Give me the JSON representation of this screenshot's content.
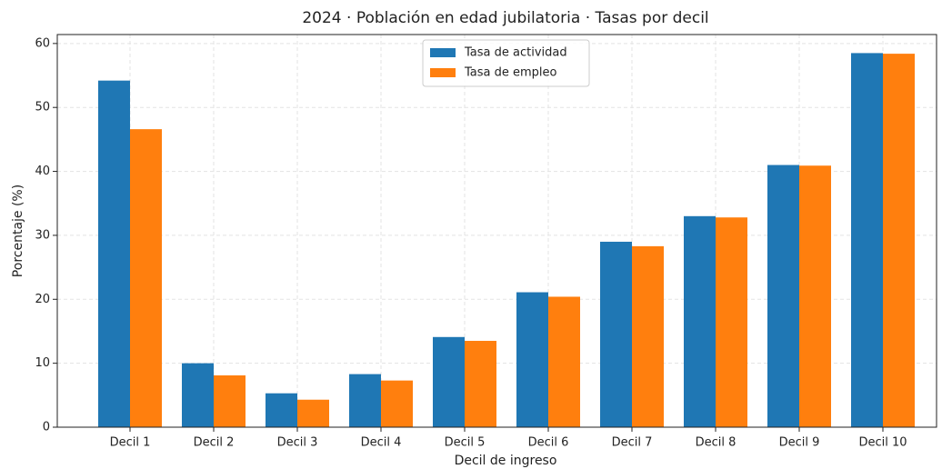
{
  "chart_data": {
    "type": "bar",
    "title": "2024 · Población en edad jubilatoria · Tasas por decil",
    "x_label": "Decil de ingreso",
    "y_label": "Porcentaje (%)",
    "categories": [
      "Decil 1",
      "Decil 2",
      "Decil 3",
      "Decil 4",
      "Decil 5",
      "Decil 6",
      "Decil 7",
      "Decil 8",
      "Decil 9",
      "Decil 10"
    ],
    "series": [
      {
        "name": "Tasa de actividad",
        "color": "#1f77b4",
        "values": [
          54.2,
          10.0,
          5.3,
          8.3,
          14.1,
          21.1,
          29.0,
          33.0,
          41.0,
          58.5
        ]
      },
      {
        "name": "Tasa de empleo",
        "color": "#ff7f0e",
        "values": [
          46.6,
          8.1,
          4.3,
          7.3,
          13.5,
          20.4,
          28.3,
          32.8,
          40.9,
          58.4
        ]
      }
    ],
    "ylim": [
      0,
      61.4
    ],
    "yticks": [
      0,
      10,
      20,
      30,
      40,
      50,
      60
    ],
    "grid": true,
    "legend": "upper center"
  }
}
